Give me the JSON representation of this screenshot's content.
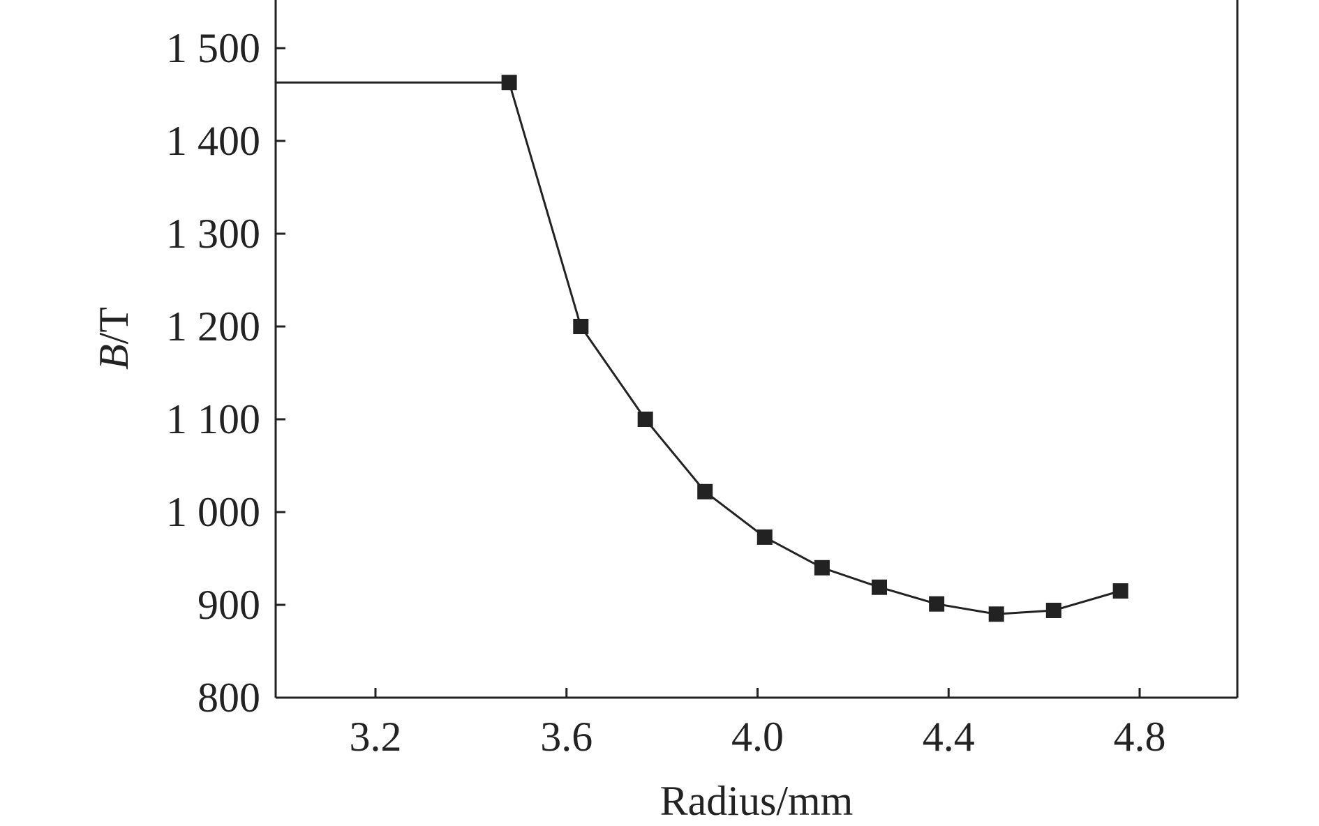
{
  "chart_data": {
    "type": "line",
    "title": "",
    "xlabel": "Radius/mm",
    "ylabel_italic": "B",
    "ylabel_rest": "/T",
    "xlim": [
      2.95,
      4.95
    ],
    "ylim": [
      800,
      1550
    ],
    "xticks": [
      3.2,
      3.6,
      4.0,
      4.4,
      4.8
    ],
    "xtick_labels": [
      "3.2",
      "3.6",
      "4.0",
      "4.4",
      "4.8"
    ],
    "yticks": [
      800,
      900,
      1000,
      1100,
      1200,
      1300,
      1400,
      1500
    ],
    "ytick_labels": [
      "800",
      "900",
      "1 000",
      "1 100",
      "1 200",
      "1 300",
      "1 400",
      "1 500"
    ],
    "grid": false,
    "series": [
      {
        "color": "#222222",
        "marker": "square",
        "lead_in": {
          "x": 2.95,
          "y": 1463
        },
        "x": [
          3.48,
          3.63,
          3.765,
          3.89,
          4.015,
          4.135,
          4.255,
          4.375,
          4.5,
          4.62,
          4.76
        ],
        "y": [
          1463,
          1200,
          1100,
          1022,
          973,
          940,
          919,
          901,
          890,
          894,
          915
        ]
      }
    ]
  }
}
